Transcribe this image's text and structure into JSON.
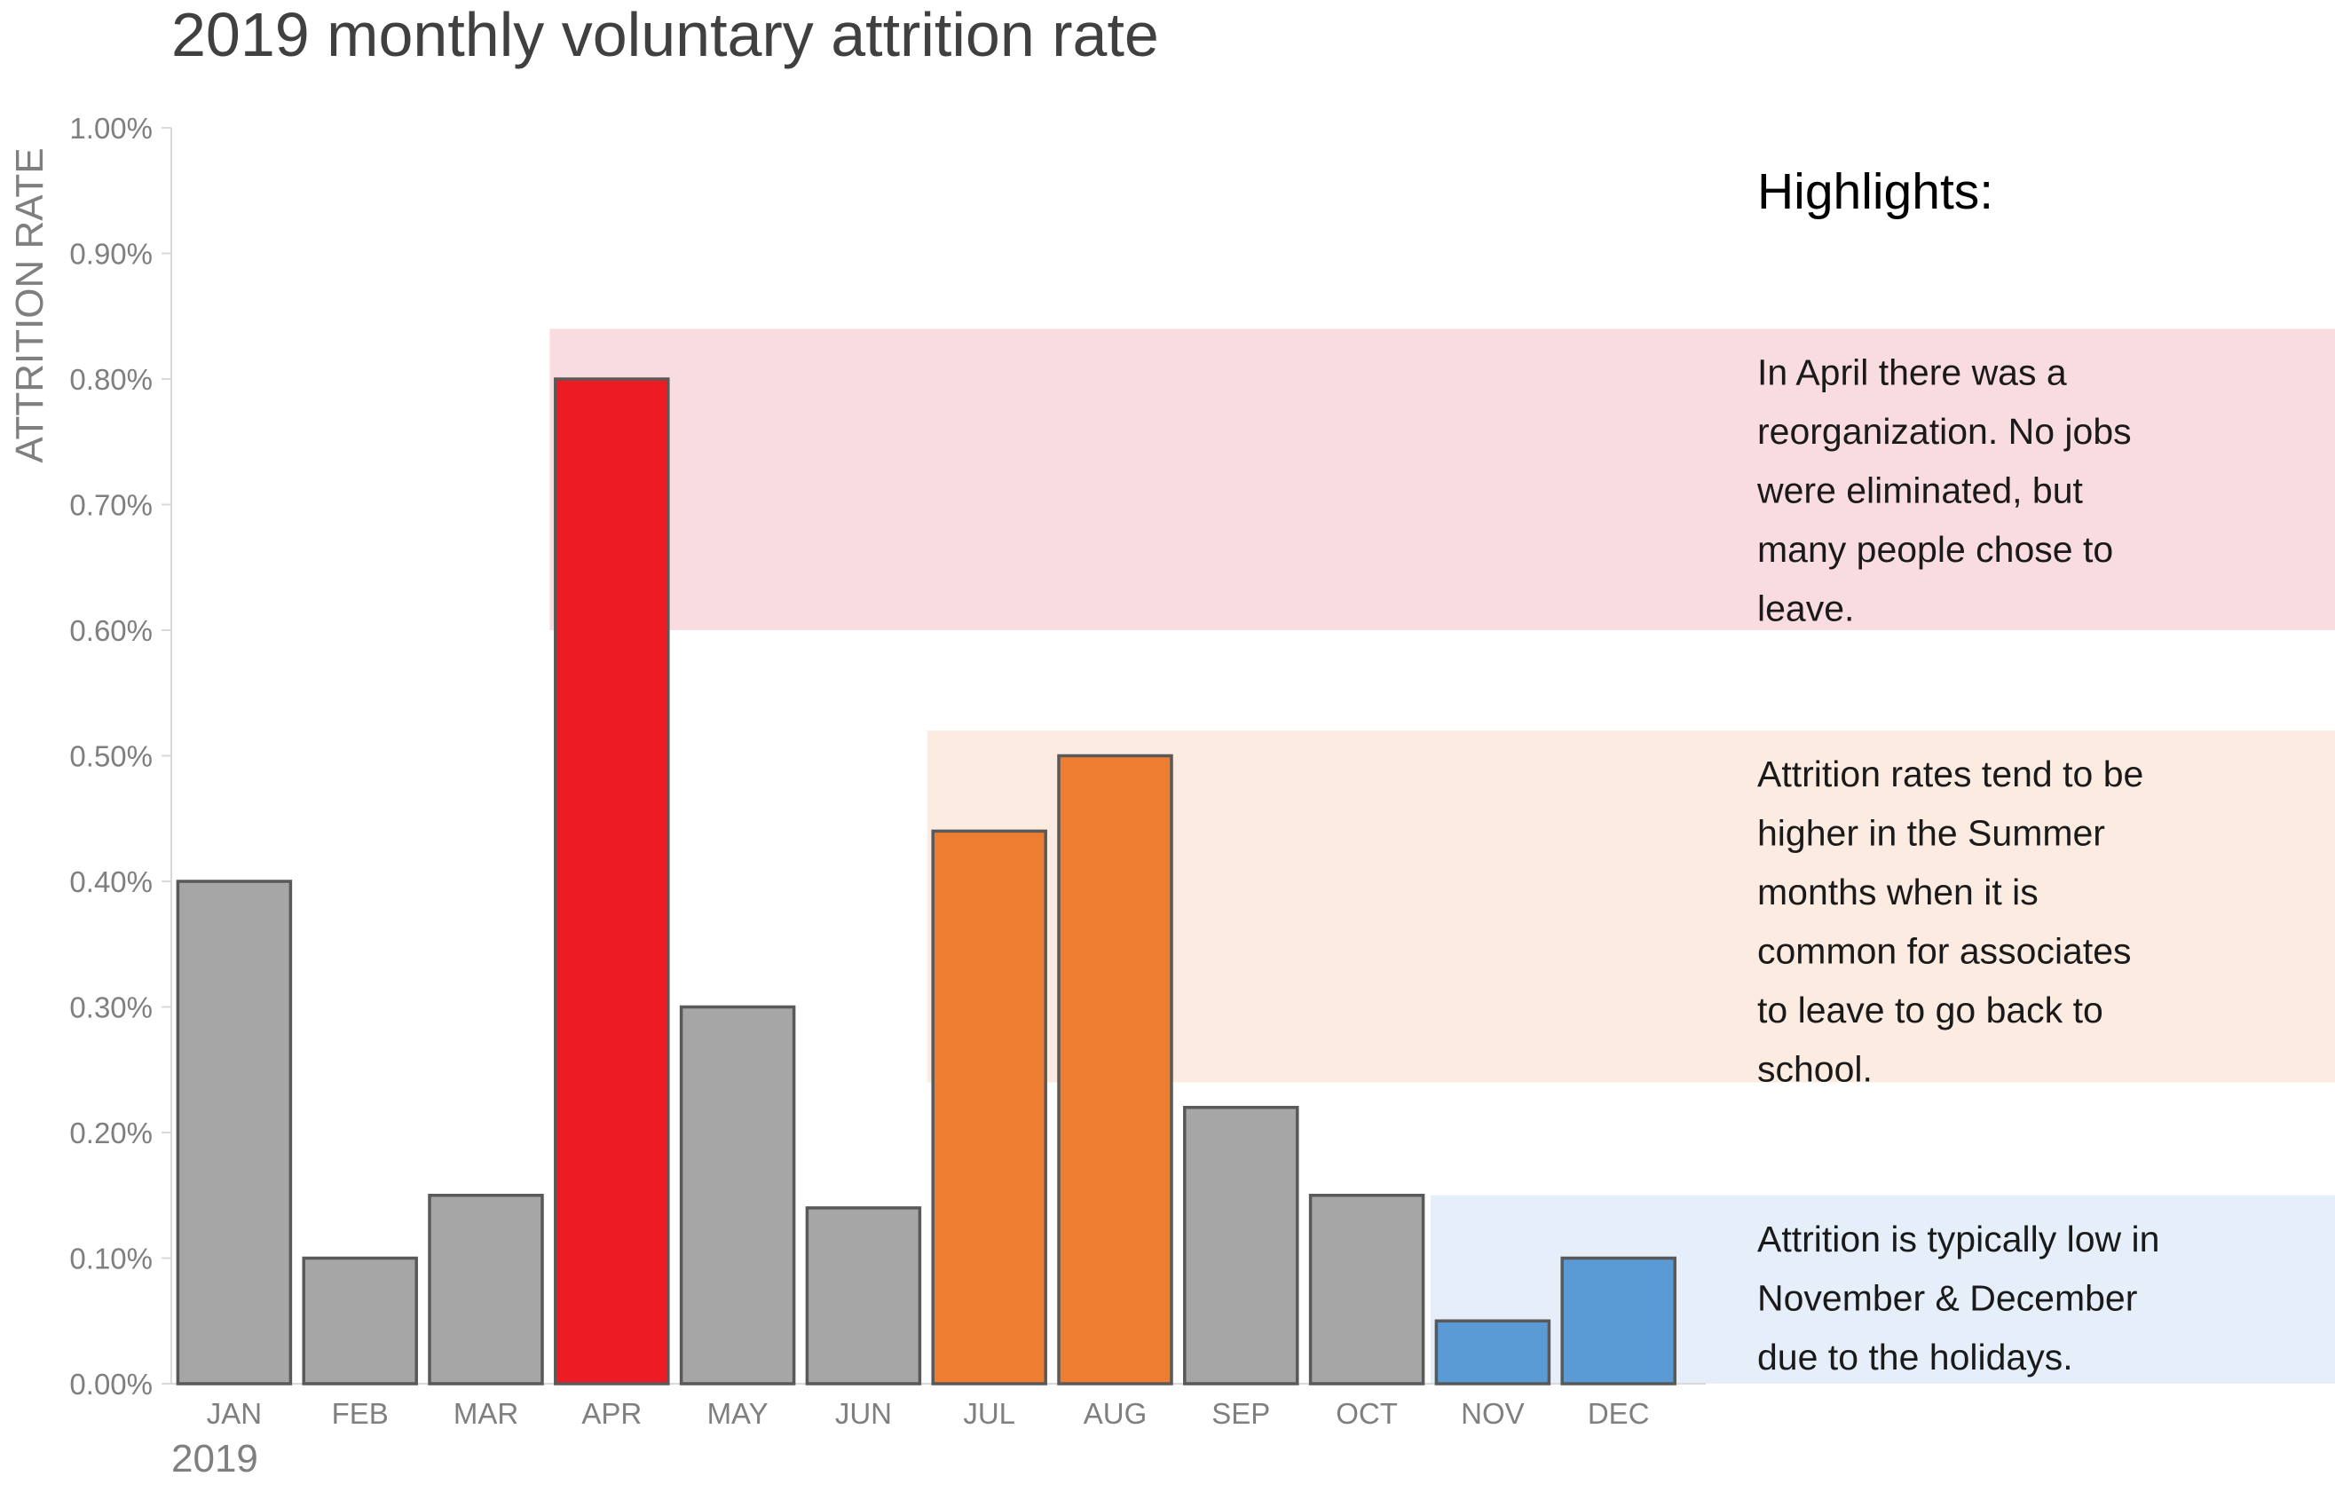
{
  "chart_data": {
    "type": "bar",
    "title": "2019 monthly voluntary attrition rate",
    "ylabel": "ATTRITION RATE",
    "x_sublabel": "2019",
    "ylim": [
      0,
      1.0
    ],
    "y_ticks": [
      "0.00%",
      "0.10%",
      "0.20%",
      "0.30%",
      "0.40%",
      "0.50%",
      "0.60%",
      "0.70%",
      "0.80%",
      "0.90%",
      "1.00%"
    ],
    "categories": [
      "JAN",
      "FEB",
      "MAR",
      "APR",
      "MAY",
      "JUN",
      "JUL",
      "AUG",
      "SEP",
      "OCT",
      "NOV",
      "DEC"
    ],
    "values": [
      0.4,
      0.1,
      0.15,
      0.8,
      0.3,
      0.14,
      0.44,
      0.5,
      0.22,
      0.15,
      0.05,
      0.1
    ],
    "bar_colors": [
      "#a6a6a6",
      "#a6a6a6",
      "#a6a6a6",
      "#ed1c24",
      "#a6a6a6",
      "#a6a6a6",
      "#ed7d31",
      "#ed7d31",
      "#a6a6a6",
      "#a6a6a6",
      "#5b9bd5",
      "#5b9bd5"
    ],
    "bar_edge_color": "#595959",
    "grid": false,
    "highlights_title": "Highlights:",
    "highlights": [
      {
        "color": "#f9dcdf",
        "start_month": "APR",
        "y_range": [
          0.6,
          0.84
        ],
        "lines": [
          "In April there was a",
          "reorganization. No jobs",
          "were eliminated, but",
          "many people chose to",
          "leave."
        ]
      },
      {
        "color": "#fbebe0",
        "start_month": "JUL",
        "y_range": [
          0.24,
          0.52
        ],
        "lines": [
          "Attrition rates tend to be",
          "higher in the Summer",
          "months when it is",
          "common for associates",
          "to leave to go back to",
          "school."
        ]
      },
      {
        "color": "#e5eef9",
        "start_month": "NOV",
        "y_range": [
          0.0,
          0.15
        ],
        "lines": [
          "Attrition is typically low in",
          "November & December",
          "due to the holidays."
        ]
      }
    ]
  }
}
